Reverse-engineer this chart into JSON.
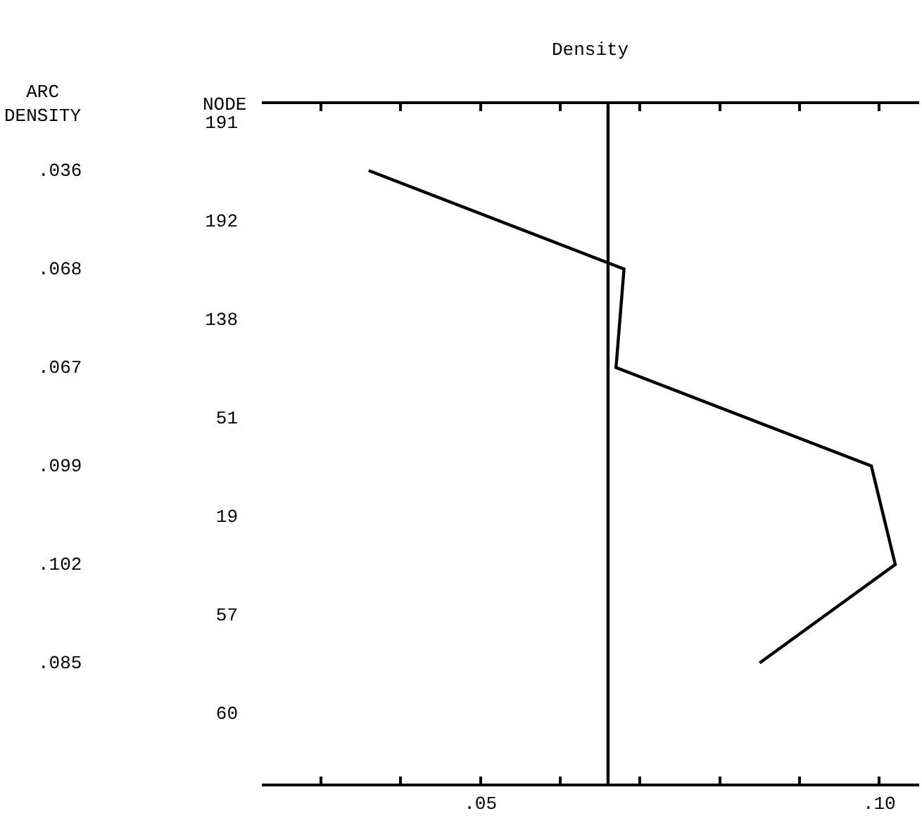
{
  "chart_data": {
    "type": "line",
    "orientation": "horizontal",
    "xlabel": "Density",
    "ylabel": "NODE",
    "annotations": [
      "ARC\nDENSITY"
    ],
    "categories": [
      "191",
      null,
      "192",
      null,
      "138",
      null,
      "51",
      null,
      "19",
      null,
      "57",
      null,
      "60"
    ],
    "values": [
      null,
      0.036,
      null,
      0.068,
      null,
      0.067,
      null,
      0.099,
      null,
      0.102,
      null,
      0.085,
      null
    ],
    "value_labels": [
      null,
      ".036",
      null,
      ".068",
      null,
      ".067",
      null,
      ".099",
      null,
      ".102",
      null,
      ".085",
      null
    ],
    "color": "#000000",
    "marker": "none",
    "line_style": "solid",
    "grid": false,
    "xlim": [
      0.0226,
      0.105
    ],
    "xticks": [
      {
        "value": 0.03,
        "label": null
      },
      {
        "value": 0.04,
        "label": null
      },
      {
        "value": 0.05,
        "label": ".05"
      },
      {
        "value": 0.06,
        "label": null
      },
      {
        "value": 0.07,
        "label": null
      },
      {
        "value": 0.08,
        "label": null
      },
      {
        "value": 0.09,
        "label": null
      },
      {
        "value": 0.1,
        "label": ".10"
      }
    ],
    "ref_lines": [
      {
        "axis": "x",
        "value": 0.066,
        "color": "#000000"
      }
    ]
  }
}
